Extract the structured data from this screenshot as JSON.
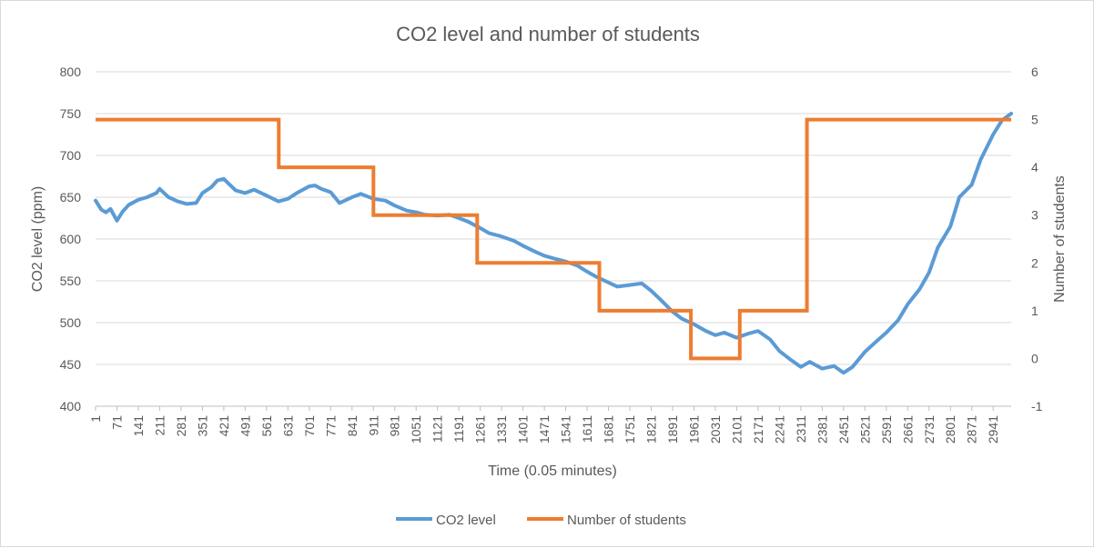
{
  "chart_data": {
    "type": "line",
    "title": "CO2 level and number of students",
    "xlabel": "Time (0.05 minutes)",
    "ylabel": "CO2 level (ppm)",
    "y2label": "Number of students",
    "xlim": [
      1,
      3000
    ],
    "ylim": [
      400,
      800
    ],
    "y2lim": [
      -1,
      6
    ],
    "y_ticks": [
      400,
      450,
      500,
      550,
      600,
      650,
      700,
      750,
      800
    ],
    "y2_ticks": [
      -1,
      0,
      1,
      2,
      3,
      4,
      5,
      6
    ],
    "x_tick_labels": [
      "1",
      "71",
      "141",
      "211",
      "281",
      "351",
      "421",
      "491",
      "561",
      "631",
      "701",
      "771",
      "841",
      "911",
      "981",
      "1051",
      "1121",
      "1191",
      "1261",
      "1331",
      "1401",
      "1471",
      "1541",
      "1611",
      "1681",
      "1751",
      "1821",
      "1891",
      "1961",
      "2031",
      "2101",
      "2171",
      "2241",
      "2311",
      "2381",
      "2451",
      "2521",
      "2591",
      "2661",
      "2731",
      "2801",
      "2871",
      "2941"
    ],
    "grid": true,
    "legend_position": "bottom",
    "series": [
      {
        "name": "CO2 level",
        "axis": "left",
        "color": "#5b9bd5",
        "x": [
          1,
          20,
          35,
          50,
          71,
          90,
          110,
          141,
          170,
          200,
          211,
          240,
          270,
          300,
          330,
          351,
          380,
          400,
          421,
          440,
          460,
          491,
          520,
          561,
          600,
          631,
          660,
          701,
          720,
          740,
          771,
          800,
          841,
          870,
          911,
          950,
          981,
          1020,
          1051,
          1080,
          1121,
          1160,
          1191,
          1220,
          1261,
          1290,
          1331,
          1370,
          1401,
          1440,
          1471,
          1500,
          1541,
          1580,
          1611,
          1640,
          1681,
          1710,
          1751,
          1790,
          1821,
          1850,
          1891,
          1920,
          1961,
          2000,
          2031,
          2060,
          2101,
          2140,
          2171,
          2210,
          2241,
          2280,
          2311,
          2340,
          2381,
          2420,
          2451,
          2480,
          2521,
          2560,
          2591,
          2630,
          2661,
          2700,
          2731,
          2760,
          2801,
          2830,
          2871,
          2900,
          2941,
          2970,
          3000
        ],
        "y": [
          646,
          635,
          632,
          636,
          622,
          633,
          641,
          647,
          650,
          655,
          660,
          650,
          645,
          642,
          643,
          655,
          662,
          670,
          672,
          665,
          658,
          655,
          659,
          652,
          645,
          648,
          655,
          663,
          664,
          660,
          656,
          643,
          650,
          654,
          648,
          646,
          640,
          634,
          632,
          629,
          628,
          629,
          625,
          621,
          613,
          607,
          603,
          598,
          592,
          585,
          580,
          577,
          573,
          568,
          561,
          555,
          548,
          543,
          545,
          547,
          538,
          528,
          513,
          505,
          498,
          490,
          485,
          488,
          482,
          487,
          490,
          480,
          466,
          455,
          447,
          453,
          445,
          448,
          440,
          447,
          465,
          478,
          488,
          503,
          522,
          540,
          560,
          590,
          615,
          650,
          665,
          695,
          725,
          742,
          750
        ]
      },
      {
        "name": "Number of students",
        "axis": "right",
        "color": "#ed7d31",
        "step": true,
        "x": [
          1,
          601,
          601,
          911,
          911,
          1251,
          1251,
          1651,
          1651,
          1951,
          1951,
          2111,
          2111,
          2331,
          2331,
          3000
        ],
        "y": [
          5,
          5,
          4,
          4,
          3,
          3,
          2,
          2,
          1,
          1,
          0,
          0,
          1,
          1,
          5,
          5
        ]
      }
    ]
  }
}
